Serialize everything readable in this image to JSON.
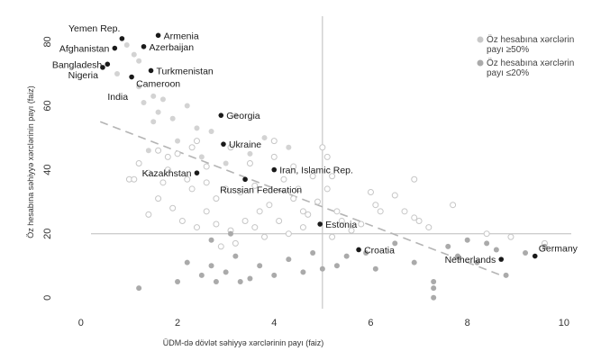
{
  "chart_data": {
    "type": "scatter",
    "xlabel": "ÜDM-də dövlət səhiyyə xərclərinin payı (faiz)",
    "ylabel": "Öz hesabına səhiyyə xərclərinin payı (faiz)",
    "xlim": [
      -0.5,
      10.3
    ],
    "ylim": [
      -4,
      88
    ],
    "x_ticks": [
      0,
      2,
      4,
      6,
      8,
      10
    ],
    "y_ticks": [
      0,
      20,
      40,
      60,
      80
    ],
    "x_tick_labels": [
      "0",
      "2",
      "4",
      "6",
      "8",
      "10"
    ],
    "y_tick_labels": [
      "0",
      "20",
      "40",
      "60",
      "80"
    ],
    "reference_lines": {
      "x": 5,
      "y": 20
    },
    "trend_line": {
      "x": [
        0.4,
        8.7
      ],
      "y": [
        55,
        7
      ]
    },
    "legend": {
      "position": "top-right",
      "entries": [
        {
          "label_lines": [
            "Öz hesabına xərclərin",
            "payı ≥50%"
          ],
          "color": "#c8c8c8",
          "marker": "filled"
        },
        {
          "label_lines": [
            "Öz hesabına xərclərin",
            "payı ≤20%"
          ],
          "color": "#aaaaaa",
          "marker": "filled"
        }
      ]
    },
    "colors": {
      "labeled": "#1a1a1a",
      "light_filled": "#d3d3d3",
      "dark_filled": "#aaaaaa",
      "hollow_stroke": "#c6c6c6",
      "trend": "#b4b4b4",
      "reference": "#bdbdbd"
    },
    "labeled_points": [
      {
        "name": "Yemen Rep.",
        "x": 0.85,
        "y": 81,
        "label_side": "top-left"
      },
      {
        "name": "Armenia",
        "x": 1.6,
        "y": 82,
        "label_side": "right"
      },
      {
        "name": "Afghanistan",
        "x": 0.7,
        "y": 78,
        "label_side": "left"
      },
      {
        "name": "Azerbaijan",
        "x": 1.3,
        "y": 78.5,
        "label_side": "right"
      },
      {
        "name": "Bangladesh",
        "x": 0.55,
        "y": 73,
        "label_side": "left"
      },
      {
        "name": "Nigeria",
        "x": 0.45,
        "y": 72,
        "label_side": "below-left"
      },
      {
        "name": "Turkmenistan",
        "x": 1.45,
        "y": 71,
        "label_side": "right"
      },
      {
        "name": "Cameroon",
        "x": 1.05,
        "y": 69,
        "label_side": "below-right"
      },
      {
        "name": "Georgia",
        "x": 2.9,
        "y": 57,
        "label_side": "right"
      },
      {
        "name": "Ukraine",
        "x": 2.95,
        "y": 48,
        "label_side": "right"
      },
      {
        "name": "Kazakhstan",
        "x": 2.4,
        "y": 39,
        "label_side": "left"
      },
      {
        "name": "Iran, Islamic Rep.",
        "x": 4.0,
        "y": 40,
        "label_side": "right"
      },
      {
        "name": "Russian Federation",
        "x": 3.4,
        "y": 37,
        "label_side": "below"
      },
      {
        "name": "Estonia",
        "x": 4.95,
        "y": 23,
        "label_side": "right"
      },
      {
        "name": "Croatia",
        "x": 5.75,
        "y": 15,
        "label_side": "right"
      },
      {
        "name": "Netherlands",
        "x": 8.7,
        "y": 12,
        "label_side": "left"
      },
      {
        "name": "Germany",
        "x": 9.4,
        "y": 13,
        "label_side": "above-right"
      }
    ],
    "unlabeled_label": {
      "name": "India",
      "x": 1.05,
      "y": 63
    },
    "light_filled_points": [
      [
        0.95,
        79
      ],
      [
        1.1,
        76
      ],
      [
        0.75,
        70
      ],
      [
        1.2,
        66
      ],
      [
        1.5,
        63
      ],
      [
        1.7,
        62
      ],
      [
        1.3,
        61
      ],
      [
        1.6,
        58
      ],
      [
        2.2,
        60
      ],
      [
        1.9,
        56
      ],
      [
        1.5,
        55
      ],
      [
        2.4,
        53
      ],
      [
        2.7,
        52
      ],
      [
        3.2,
        57
      ],
      [
        1.2,
        74
      ],
      [
        2.0,
        49
      ],
      [
        1.4,
        46
      ],
      [
        2.5,
        44
      ],
      [
        3.0,
        42
      ],
      [
        3.5,
        45
      ],
      [
        4.3,
        47
      ],
      [
        3.8,
        50
      ]
    ],
    "dark_filled_points": [
      [
        1.2,
        3
      ],
      [
        2.0,
        5
      ],
      [
        2.2,
        11
      ],
      [
        2.5,
        7
      ],
      [
        2.7,
        10
      ],
      [
        2.8,
        5
      ],
      [
        3.0,
        8
      ],
      [
        3.2,
        13
      ],
      [
        3.3,
        5
      ],
      [
        3.5,
        6
      ],
      [
        3.7,
        10
      ],
      [
        4.0,
        7
      ],
      [
        4.3,
        12
      ],
      [
        4.6,
        8
      ],
      [
        4.8,
        14
      ],
      [
        5.0,
        9
      ],
      [
        5.3,
        10
      ],
      [
        5.5,
        13
      ],
      [
        5.9,
        14
      ],
      [
        6.1,
        9
      ],
      [
        6.5,
        17
      ],
      [
        6.9,
        11
      ],
      [
        7.3,
        5
      ],
      [
        7.3,
        3
      ],
      [
        7.3,
        0
      ],
      [
        7.6,
        16
      ],
      [
        7.8,
        13
      ],
      [
        8.0,
        18
      ],
      [
        8.2,
        11
      ],
      [
        8.4,
        17
      ],
      [
        8.6,
        15
      ],
      [
        8.8,
        7
      ],
      [
        9.2,
        14
      ],
      [
        9.6,
        16
      ],
      [
        3.1,
        20
      ],
      [
        2.7,
        18
      ]
    ],
    "hollow_points": [
      [
        1.0,
        37
      ],
      [
        1.1,
        37
      ],
      [
        1.2,
        42
      ],
      [
        1.4,
        39
      ],
      [
        1.8,
        40
      ],
      [
        1.7,
        36
      ],
      [
        2.2,
        37
      ],
      [
        2.3,
        34
      ],
      [
        2.6,
        36
      ],
      [
        2.8,
        31
      ],
      [
        3.0,
        34
      ],
      [
        3.3,
        33
      ],
      [
        3.6,
        35
      ],
      [
        4.2,
        37
      ],
      [
        4.5,
        34
      ],
      [
        4.8,
        38
      ],
      [
        4.4,
        31
      ],
      [
        3.9,
        29
      ],
      [
        3.7,
        27
      ],
      [
        3.4,
        24
      ],
      [
        3.1,
        21
      ],
      [
        2.8,
        23
      ],
      [
        2.6,
        27
      ],
      [
        4.1,
        24
      ],
      [
        4.6,
        27
      ],
      [
        4.9,
        30
      ],
      [
        5.1,
        34
      ],
      [
        5.3,
        27
      ],
      [
        5.4,
        24
      ],
      [
        5.6,
        21
      ],
      [
        6.0,
        33
      ],
      [
        6.2,
        27
      ],
      [
        6.5,
        32
      ],
      [
        6.7,
        27
      ],
      [
        6.9,
        25
      ],
      [
        7.2,
        22
      ],
      [
        7.0,
        24
      ],
      [
        5.8,
        23
      ],
      [
        5.2,
        19
      ],
      [
        4.3,
        20
      ],
      [
        3.8,
        19
      ],
      [
        3.2,
        17
      ],
      [
        2.9,
        16
      ],
      [
        2.4,
        22
      ],
      [
        2.1,
        24
      ],
      [
        1.9,
        28
      ],
      [
        1.6,
        31
      ],
      [
        1.4,
        26
      ],
      [
        2.0,
        45
      ],
      [
        2.3,
        47
      ],
      [
        2.6,
        41
      ],
      [
        3.5,
        42
      ],
      [
        4.0,
        44
      ],
      [
        4.4,
        41
      ],
      [
        5.2,
        38
      ],
      [
        4.6,
        22
      ],
      [
        4.7,
        26
      ],
      [
        3.6,
        22
      ],
      [
        6.1,
        29
      ],
      [
        6.9,
        37
      ],
      [
        7.7,
        29
      ],
      [
        8.4,
        20
      ],
      [
        8.9,
        19
      ],
      [
        9.6,
        17
      ],
      [
        1.6,
        46
      ],
      [
        1.8,
        44
      ],
      [
        2.4,
        49
      ],
      [
        3.1,
        47
      ],
      [
        4.0,
        49
      ],
      [
        5.0,
        47
      ],
      [
        5.1,
        44
      ]
    ]
  }
}
